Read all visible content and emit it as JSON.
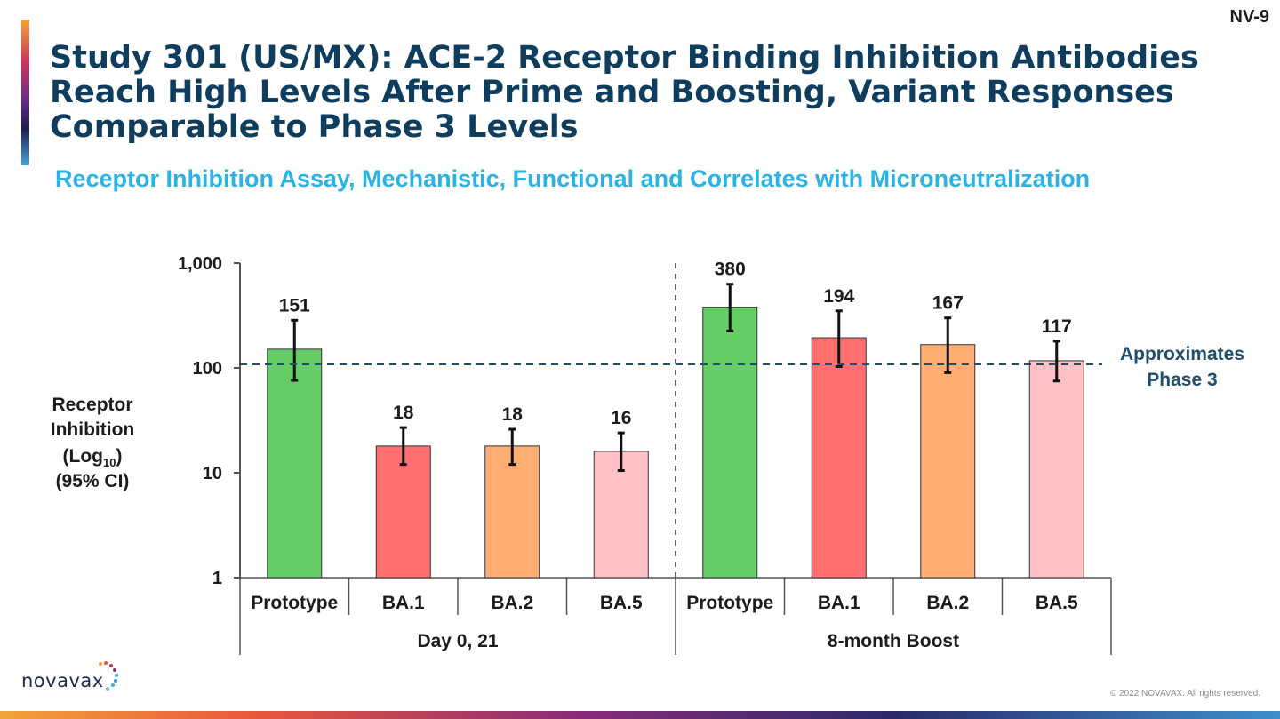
{
  "slide": {
    "id": "NV-9",
    "title_lines": [
      "Study 301 (US/MX): ACE-2 Receptor Binding Inhibition Antibodies",
      "Reach High Levels After Prime and Boosting, Variant Responses",
      "Comparable to Phase 3 Levels"
    ],
    "subtitle": "Receptor Inhibition Assay, Mechanistic, Functional and Correlates with Microneutralization",
    "logo_text": "novavax",
    "copyright": "© 2022 NOVAVAX. All rights reserved."
  },
  "chart_data": {
    "type": "bar",
    "yscale": "log10",
    "ylim": [
      1,
      1000
    ],
    "yticks": [
      1,
      10,
      100,
      1000
    ],
    "ytick_labels": [
      "1",
      "10",
      "100",
      "1,000"
    ],
    "ylabel_lines": [
      "Receptor",
      "Inhibition",
      "(Log",
      "10",
      ")",
      "(95% CI)"
    ],
    "categories": [
      "Prototype",
      "BA.1",
      "BA.2",
      "BA.5",
      "Prototype",
      "BA.1",
      "BA.2",
      "BA.5"
    ],
    "groups": [
      {
        "label": "Day 0, 21",
        "indices": [
          0,
          1,
          2,
          3
        ]
      },
      {
        "label": "8-month Boost",
        "indices": [
          4,
          5,
          6,
          7
        ]
      }
    ],
    "values": [
      151,
      18,
      18,
      16,
      380,
      194,
      167,
      117
    ],
    "value_labels": [
      "151",
      "18",
      "18",
      "16",
      "380",
      "194",
      "167",
      "117"
    ],
    "ci_low": [
      76,
      12,
      12,
      10.5,
      225,
      103,
      90,
      75
    ],
    "ci_high": [
      285,
      27,
      26,
      24,
      630,
      350,
      300,
      180
    ],
    "colors": [
      "#66cc66",
      "#ff7070",
      "#ffad73",
      "#ffc0c6",
      "#66cc66",
      "#ff7070",
      "#ffad73",
      "#ffc0c6"
    ],
    "reference_line": {
      "value": 108,
      "label_lines": [
        "Approximates",
        "Phase 3"
      ],
      "color": "#1f4e6e"
    }
  }
}
